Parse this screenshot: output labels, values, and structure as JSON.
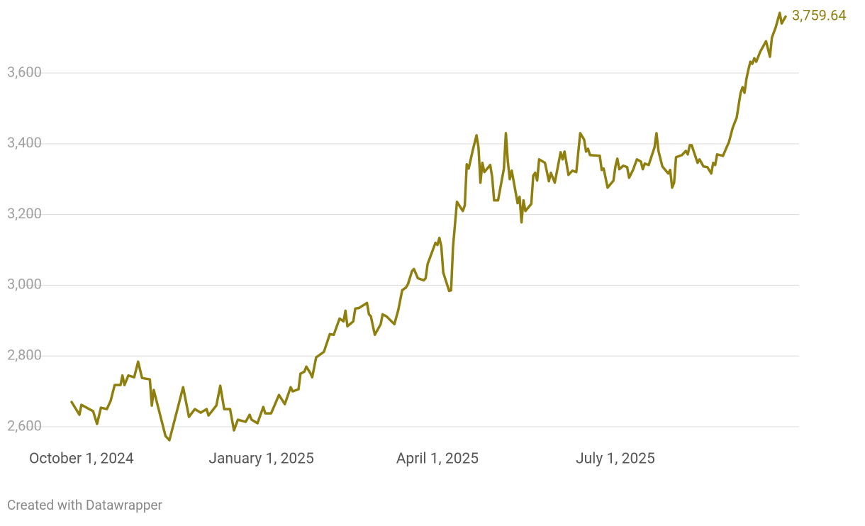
{
  "chart_data": {
    "type": "line",
    "color": "#8f7f0e",
    "grid": true,
    "footer": "Created with Datawrapper",
    "end_label": "3,759.64",
    "xlim": [
      "2024-09-26",
      "2025-09-26"
    ],
    "ylim": [
      2560,
      3780
    ],
    "xticks": [
      {
        "value": "2024-10-01",
        "label": "October 1, 2024"
      },
      {
        "value": "2025-01-01",
        "label": "January 1, 2025"
      },
      {
        "value": "2025-04-01",
        "label": "April 1, 2025"
      },
      {
        "value": "2025-07-01",
        "label": "July 1, 2025"
      }
    ],
    "yticks": [
      {
        "value": 2600,
        "label": "2,600"
      },
      {
        "value": 2800,
        "label": "2,800"
      },
      {
        "value": 3000,
        "label": "3,000"
      },
      {
        "value": 3200,
        "label": "3,200"
      },
      {
        "value": 3400,
        "label": "3,400"
      },
      {
        "value": 3600,
        "label": "3,600"
      }
    ],
    "x": [
      "2024-09-26",
      "2024-09-30",
      "2024-10-01",
      "2024-10-07",
      "2024-10-09",
      "2024-10-11",
      "2024-10-14",
      "2024-10-16",
      "2024-10-18",
      "2024-10-21",
      "2024-10-22",
      "2024-10-23",
      "2024-10-25",
      "2024-10-28",
      "2024-10-30",
      "2024-11-01",
      "2024-11-05",
      "2024-11-06",
      "2024-11-07",
      "2024-11-13",
      "2024-11-15",
      "2024-11-22",
      "2024-11-25",
      "2024-11-28",
      "2024-12-01",
      "2024-12-04",
      "2024-12-05",
      "2024-12-09",
      "2024-12-11",
      "2024-12-13",
      "2024-12-16",
      "2024-12-18",
      "2024-12-20",
      "2024-12-24",
      "2024-12-26",
      "2024-12-27",
      "2024-12-30",
      "2025-01-02",
      "2025-01-03",
      "2025-01-06",
      "2025-01-10",
      "2025-01-13",
      "2025-01-16",
      "2025-01-17",
      "2025-01-20",
      "2025-01-21",
      "2025-01-23",
      "2025-01-24",
      "2025-01-26",
      "2025-01-27",
      "2025-01-29",
      "2025-02-02",
      "2025-02-05",
      "2025-02-07",
      "2025-02-10",
      "2025-02-12",
      "2025-02-13",
      "2025-02-14",
      "2025-02-17",
      "2025-02-18",
      "2025-02-20",
      "2025-02-24",
      "2025-02-25",
      "2025-02-26",
      "2025-02-28",
      "2025-03-03",
      "2025-03-04",
      "2025-03-06",
      "2025-03-10",
      "2025-03-12",
      "2025-03-14",
      "2025-03-16",
      "2025-03-17",
      "2025-03-19",
      "2025-03-20",
      "2025-03-22",
      "2025-03-25",
      "2025-03-26",
      "2025-03-27",
      "2025-03-29",
      "2025-03-31",
      "2025-04-01",
      "2025-04-02",
      "2025-04-03",
      "2025-04-04",
      "2025-04-07",
      "2025-04-08",
      "2025-04-09",
      "2025-04-11",
      "2025-04-14",
      "2025-04-15",
      "2025-04-16",
      "2025-04-17",
      "2025-04-19",
      "2025-04-21",
      "2025-04-22",
      "2025-04-23",
      "2025-04-24",
      "2025-04-25",
      "2025-04-28",
      "2025-04-29",
      "2025-04-30",
      "2025-05-02",
      "2025-05-05",
      "2025-05-06",
      "2025-05-07",
      "2025-05-08",
      "2025-05-09",
      "2025-05-12",
      "2025-05-13",
      "2025-05-14",
      "2025-05-15",
      "2025-05-16",
      "2025-05-19",
      "2025-05-20",
      "2025-05-21",
      "2025-05-22",
      "2025-05-23",
      "2025-05-26",
      "2025-05-28",
      "2025-05-29",
      "2025-05-31",
      "2025-06-03",
      "2025-06-04",
      "2025-06-05",
      "2025-06-07",
      "2025-06-09",
      "2025-06-11",
      "2025-06-13",
      "2025-06-15",
      "2025-06-16",
      "2025-06-17",
      "2025-06-18",
      "2025-06-23",
      "2025-06-24",
      "2025-06-25",
      "2025-06-27",
      "2025-06-30",
      "2025-07-01",
      "2025-07-02",
      "2025-07-03",
      "2025-07-05",
      "2025-07-07",
      "2025-07-08",
      "2025-07-10",
      "2025-07-12",
      "2025-07-14",
      "2025-07-15",
      "2025-07-16",
      "2025-07-18",
      "2025-07-21",
      "2025-07-22",
      "2025-07-23",
      "2025-07-25",
      "2025-07-28",
      "2025-07-29",
      "2025-07-30",
      "2025-07-31",
      "2025-08-01",
      "2025-08-04",
      "2025-08-06",
      "2025-08-07",
      "2025-08-08",
      "2025-08-09",
      "2025-08-12",
      "2025-08-13",
      "2025-08-15",
      "2025-08-17",
      "2025-08-19",
      "2025-08-20",
      "2025-08-21",
      "2025-08-22",
      "2025-08-25",
      "2025-08-27",
      "2025-08-28",
      "2025-08-30",
      "2025-09-01",
      "2025-09-03",
      "2025-09-04",
      "2025-09-05",
      "2025-09-06",
      "2025-09-07",
      "2025-09-08",
      "2025-09-09",
      "2025-09-10",
      "2025-09-11",
      "2025-09-13",
      "2025-09-16",
      "2025-09-18",
      "2025-09-19",
      "2025-09-21",
      "2025-09-23",
      "2025-09-24",
      "2025-09-26"
    ],
    "values": [
      2670,
      2634,
      2662,
      2644,
      2608,
      2654,
      2650,
      2674,
      2718,
      2718,
      2745,
      2718,
      2745,
      2740,
      2784,
      2738,
      2734,
      2660,
      2704,
      2574,
      2562,
      2712,
      2628,
      2650,
      2640,
      2650,
      2632,
      2660,
      2716,
      2650,
      2650,
      2590,
      2620,
      2614,
      2634,
      2620,
      2610,
      2656,
      2638,
      2638,
      2690,
      2664,
      2712,
      2700,
      2706,
      2750,
      2756,
      2770,
      2752,
      2740,
      2796,
      2812,
      2862,
      2860,
      2906,
      2898,
      2928,
      2884,
      2898,
      2934,
      2936,
      2950,
      2918,
      2912,
      2860,
      2890,
      2918,
      2912,
      2890,
      2930,
      2986,
      2994,
      3004,
      3040,
      3046,
      3020,
      3014,
      3020,
      3060,
      3090,
      3120,
      3114,
      3134,
      3110,
      3036,
      2984,
      2986,
      3110,
      3236,
      3210,
      3226,
      3342,
      3330,
      3380,
      3424,
      3390,
      3290,
      3346,
      3320,
      3340,
      3306,
      3240,
      3240,
      3330,
      3430,
      3350,
      3300,
      3324,
      3232,
      3250,
      3178,
      3240,
      3210,
      3230,
      3310,
      3318,
      3296,
      3356,
      3346,
      3294,
      3318,
      3290,
      3376,
      3356,
      3378,
      3312,
      3324,
      3320,
      3430,
      3412,
      3378,
      3386,
      3368,
      3366,
      3326,
      3330,
      3276,
      3296,
      3336,
      3358,
      3328,
      3338,
      3334,
      3304,
      3326,
      3356,
      3350,
      3328,
      3344,
      3340,
      3390,
      3430,
      3380,
      3336,
      3316,
      3326,
      3276,
      3290,
      3362,
      3368,
      3380,
      3370,
      3396,
      3396,
      3346,
      3356,
      3336,
      3334,
      3316,
      3346,
      3340,
      3370,
      3366,
      3392,
      3404,
      3446,
      3474,
      3544,
      3560,
      3544,
      3584,
      3610,
      3632,
      3626,
      3642,
      3632,
      3660,
      3690,
      3646,
      3700,
      3730,
      3770,
      3740,
      3759.64
    ]
  }
}
